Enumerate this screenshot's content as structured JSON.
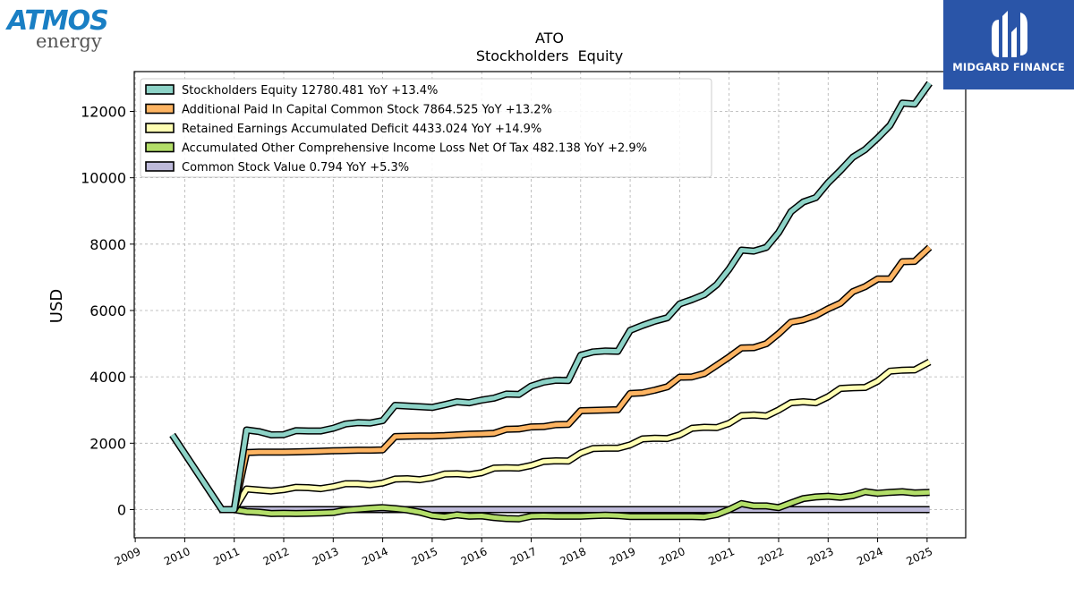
{
  "brand": {
    "left_logo_top": "ATMOS",
    "left_logo_bottom": "energy",
    "right_logo_name": "MIDGARD FINANCE",
    "right_logo_bg": "#2a55a8",
    "left_logo_color": "#1a7fc4"
  },
  "chart_data": {
    "type": "line",
    "title": "ATO",
    "subtitle": "Stockholders  Equity",
    "ylabel": "USD",
    "xlabel": "",
    "ylim": [
      -850,
      13200
    ],
    "xlim": [
      2008.98,
      2025.78
    ],
    "yticks": [
      0,
      2000,
      4000,
      6000,
      8000,
      10000,
      12000
    ],
    "xticks": [
      2009,
      2010,
      2011,
      2012,
      2013,
      2014,
      2015,
      2016,
      2017,
      2018,
      2019,
      2020,
      2021,
      2022,
      2023,
      2024,
      2025
    ],
    "grid": true,
    "legend_position": "top-left",
    "series": [
      {
        "name": "Stockholders Equity  12780.481 YoY +13.4%",
        "color": "#8dd3c7",
        "points": [
          [
            2009.75,
            2250
          ],
          [
            2010.75,
            0
          ],
          [
            2011.0,
            0
          ],
          [
            2011.25,
            2400
          ],
          [
            2011.5,
            2350
          ],
          [
            2011.75,
            2250
          ],
          [
            2012.0,
            2260
          ],
          [
            2012.25,
            2380
          ],
          [
            2012.5,
            2370
          ],
          [
            2012.75,
            2370
          ],
          [
            2013.0,
            2450
          ],
          [
            2013.25,
            2580
          ],
          [
            2013.5,
            2620
          ],
          [
            2013.75,
            2610
          ],
          [
            2014.0,
            2680
          ],
          [
            2014.25,
            3140
          ],
          [
            2014.5,
            3120
          ],
          [
            2014.75,
            3100
          ],
          [
            2015.0,
            3080
          ],
          [
            2015.25,
            3160
          ],
          [
            2015.5,
            3250
          ],
          [
            2015.75,
            3220
          ],
          [
            2016.0,
            3300
          ],
          [
            2016.25,
            3360
          ],
          [
            2016.5,
            3480
          ],
          [
            2016.75,
            3470
          ],
          [
            2017.0,
            3720
          ],
          [
            2017.25,
            3840
          ],
          [
            2017.5,
            3900
          ],
          [
            2017.75,
            3890
          ],
          [
            2018.0,
            4650
          ],
          [
            2018.25,
            4750
          ],
          [
            2018.5,
            4780
          ],
          [
            2018.75,
            4770
          ],
          [
            2019.0,
            5400
          ],
          [
            2019.25,
            5550
          ],
          [
            2019.5,
            5680
          ],
          [
            2019.75,
            5780
          ],
          [
            2020.0,
            6200
          ],
          [
            2020.25,
            6330
          ],
          [
            2020.5,
            6480
          ],
          [
            2020.75,
            6780
          ],
          [
            2021.0,
            7250
          ],
          [
            2021.25,
            7820
          ],
          [
            2021.5,
            7790
          ],
          [
            2021.75,
            7900
          ],
          [
            2022.0,
            8350
          ],
          [
            2022.25,
            8980
          ],
          [
            2022.5,
            9270
          ],
          [
            2022.75,
            9400
          ],
          [
            2023.0,
            9850
          ],
          [
            2023.25,
            10220
          ],
          [
            2023.5,
            10620
          ],
          [
            2023.75,
            10850
          ],
          [
            2024.0,
            11200
          ],
          [
            2024.25,
            11580
          ],
          [
            2024.5,
            12250
          ],
          [
            2024.75,
            12220
          ],
          [
            2025.05,
            12850
          ]
        ]
      },
      {
        "name": "Additional Paid In Capital Common Stock  7864.525 YoY +13.2%",
        "color": "#fdb462",
        "points": [
          [
            2011.0,
            0
          ],
          [
            2011.25,
            1720
          ],
          [
            2011.5,
            1730
          ],
          [
            2011.75,
            1730
          ],
          [
            2012.0,
            1730
          ],
          [
            2012.25,
            1740
          ],
          [
            2012.5,
            1750
          ],
          [
            2012.75,
            1760
          ],
          [
            2013.0,
            1770
          ],
          [
            2013.25,
            1780
          ],
          [
            2013.5,
            1790
          ],
          [
            2013.75,
            1790
          ],
          [
            2014.0,
            1800
          ],
          [
            2014.25,
            2200
          ],
          [
            2014.5,
            2210
          ],
          [
            2014.75,
            2220
          ],
          [
            2015.0,
            2220
          ],
          [
            2015.25,
            2230
          ],
          [
            2015.5,
            2250
          ],
          [
            2015.75,
            2270
          ],
          [
            2016.0,
            2280
          ],
          [
            2016.25,
            2300
          ],
          [
            2016.5,
            2420
          ],
          [
            2016.75,
            2430
          ],
          [
            2017.0,
            2490
          ],
          [
            2017.25,
            2500
          ],
          [
            2017.5,
            2560
          ],
          [
            2017.75,
            2570
          ],
          [
            2018.0,
            2980
          ],
          [
            2018.25,
            2990
          ],
          [
            2018.5,
            3000
          ],
          [
            2018.75,
            3010
          ],
          [
            2019.0,
            3500
          ],
          [
            2019.25,
            3520
          ],
          [
            2019.5,
            3600
          ],
          [
            2019.75,
            3700
          ],
          [
            2020.0,
            3990
          ],
          [
            2020.25,
            4000
          ],
          [
            2020.5,
            4100
          ],
          [
            2020.75,
            4350
          ],
          [
            2021.0,
            4600
          ],
          [
            2021.25,
            4870
          ],
          [
            2021.5,
            4880
          ],
          [
            2021.75,
            5000
          ],
          [
            2022.0,
            5300
          ],
          [
            2022.25,
            5650
          ],
          [
            2022.5,
            5720
          ],
          [
            2022.75,
            5850
          ],
          [
            2023.0,
            6050
          ],
          [
            2023.25,
            6220
          ],
          [
            2023.5,
            6570
          ],
          [
            2023.75,
            6720
          ],
          [
            2024.0,
            6950
          ],
          [
            2024.25,
            6950
          ],
          [
            2024.5,
            7470
          ],
          [
            2024.75,
            7480
          ],
          [
            2025.05,
            7900
          ]
        ]
      },
      {
        "name": "Retained Earnings Accumulated Deficit  4433.024 YoY +14.9%",
        "color": "#ffffb3",
        "points": [
          [
            2011.0,
            0
          ],
          [
            2011.25,
            620
          ],
          [
            2011.5,
            590
          ],
          [
            2011.75,
            560
          ],
          [
            2012.0,
            600
          ],
          [
            2012.25,
            670
          ],
          [
            2012.5,
            660
          ],
          [
            2012.75,
            630
          ],
          [
            2013.0,
            690
          ],
          [
            2013.25,
            780
          ],
          [
            2013.5,
            780
          ],
          [
            2013.75,
            750
          ],
          [
            2014.0,
            800
          ],
          [
            2014.25,
            920
          ],
          [
            2014.5,
            930
          ],
          [
            2014.75,
            900
          ],
          [
            2015.0,
            960
          ],
          [
            2015.25,
            1070
          ],
          [
            2015.5,
            1080
          ],
          [
            2015.75,
            1050
          ],
          [
            2016.0,
            1110
          ],
          [
            2016.25,
            1250
          ],
          [
            2016.5,
            1260
          ],
          [
            2016.75,
            1250
          ],
          [
            2017.0,
            1330
          ],
          [
            2017.25,
            1450
          ],
          [
            2017.5,
            1470
          ],
          [
            2017.75,
            1460
          ],
          [
            2018.0,
            1700
          ],
          [
            2018.25,
            1840
          ],
          [
            2018.5,
            1850
          ],
          [
            2018.75,
            1850
          ],
          [
            2019.0,
            1950
          ],
          [
            2019.25,
            2130
          ],
          [
            2019.5,
            2150
          ],
          [
            2019.75,
            2140
          ],
          [
            2020.0,
            2250
          ],
          [
            2020.25,
            2450
          ],
          [
            2020.5,
            2480
          ],
          [
            2020.75,
            2470
          ],
          [
            2021.0,
            2600
          ],
          [
            2021.25,
            2830
          ],
          [
            2021.5,
            2850
          ],
          [
            2021.75,
            2820
          ],
          [
            2022.0,
            3000
          ],
          [
            2022.25,
            3220
          ],
          [
            2022.5,
            3250
          ],
          [
            2022.75,
            3220
          ],
          [
            2023.0,
            3400
          ],
          [
            2023.25,
            3650
          ],
          [
            2023.5,
            3670
          ],
          [
            2023.75,
            3680
          ],
          [
            2024.0,
            3870
          ],
          [
            2024.25,
            4170
          ],
          [
            2024.5,
            4200
          ],
          [
            2024.75,
            4210
          ],
          [
            2025.05,
            4450
          ]
        ]
      },
      {
        "name": "Accumulated Other Comprehensive Income Loss Net Of Tax  482.138 YoY +2.9%",
        "color": "#b3de69",
        "points": [
          [
            2011.0,
            0
          ],
          [
            2011.25,
            -60
          ],
          [
            2011.5,
            -80
          ],
          [
            2011.75,
            -120
          ],
          [
            2012.0,
            -110
          ],
          [
            2012.25,
            -120
          ],
          [
            2012.5,
            -110
          ],
          [
            2012.75,
            -100
          ],
          [
            2013.0,
            -90
          ],
          [
            2013.25,
            -20
          ],
          [
            2013.5,
            10
          ],
          [
            2013.75,
            40
          ],
          [
            2014.0,
            60
          ],
          [
            2014.25,
            30
          ],
          [
            2014.5,
            -10
          ],
          [
            2014.75,
            -80
          ],
          [
            2015.0,
            -180
          ],
          [
            2015.25,
            -220
          ],
          [
            2015.5,
            -160
          ],
          [
            2015.75,
            -200
          ],
          [
            2016.0,
            -190
          ],
          [
            2016.25,
            -240
          ],
          [
            2016.5,
            -270
          ],
          [
            2016.75,
            -280
          ],
          [
            2017.0,
            -200
          ],
          [
            2017.25,
            -190
          ],
          [
            2017.5,
            -200
          ],
          [
            2017.75,
            -200
          ],
          [
            2018.0,
            -200
          ],
          [
            2018.25,
            -180
          ],
          [
            2018.5,
            -170
          ],
          [
            2018.75,
            -180
          ],
          [
            2019.0,
            -210
          ],
          [
            2019.25,
            -210
          ],
          [
            2019.5,
            -210
          ],
          [
            2019.75,
            -210
          ],
          [
            2020.0,
            -210
          ],
          [
            2020.25,
            -210
          ],
          [
            2020.5,
            -220
          ],
          [
            2020.75,
            -150
          ],
          [
            2021.0,
            0
          ],
          [
            2021.25,
            180
          ],
          [
            2021.5,
            110
          ],
          [
            2021.75,
            110
          ],
          [
            2022.0,
            60
          ],
          [
            2022.25,
            200
          ],
          [
            2022.5,
            330
          ],
          [
            2022.75,
            380
          ],
          [
            2023.0,
            400
          ],
          [
            2023.25,
            370
          ],
          [
            2023.5,
            420
          ],
          [
            2023.75,
            540
          ],
          [
            2024.0,
            490
          ],
          [
            2024.25,
            520
          ],
          [
            2024.5,
            540
          ],
          [
            2024.75,
            500
          ],
          [
            2025.05,
            520
          ]
        ]
      },
      {
        "name": "Common Stock Value  0.794 YoY +5.3%",
        "color": "#bebada",
        "points": [
          [
            2010.7,
            0
          ],
          [
            2025.05,
            0
          ]
        ]
      }
    ]
  }
}
